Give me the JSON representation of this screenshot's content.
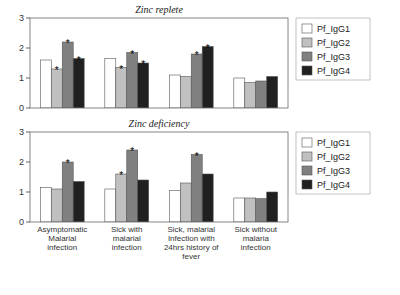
{
  "chart_data": [
    {
      "type": "bar",
      "title": "Zinc replete",
      "categories": [
        null,
        null,
        null,
        null
      ],
      "series": [
        {
          "name": "Pf_IgG1",
          "color": "#ffffff",
          "values": [
            1.6,
            1.65,
            1.1,
            1.0
          ]
        },
        {
          "name": "Pf_IgG2",
          "color": "#c0c0c0",
          "values": [
            1.3,
            1.35,
            1.05,
            0.85
          ],
          "annotations": [
            "*",
            "*",
            null,
            null
          ]
        },
        {
          "name": "Pf_IgG3",
          "color": "#808080",
          "values": [
            2.2,
            1.85,
            1.8,
            0.9
          ],
          "annotations": [
            "*",
            "*",
            "*",
            null
          ]
        },
        {
          "name": "Pf_IgG4",
          "color": "#202020",
          "values": [
            1.65,
            1.5,
            2.05,
            1.05
          ],
          "annotations": [
            "*",
            "*",
            "*",
            null
          ]
        }
      ],
      "ylim": [
        0.0,
        3.0
      ],
      "yticks": [
        0,
        1,
        2,
        3
      ],
      "legend": "right"
    },
    {
      "type": "bar",
      "title": "Zinc deficiency",
      "categories": [
        "Asymptomatic\nMalarial\ninfection",
        "Sick with\nmalarial\ninfection",
        "Sick, malarial\nInfection with\n24hrs history of\nfever",
        "Sick without\nmalaria\ninfection"
      ],
      "series": [
        {
          "name": "Pf_IgG1",
          "color": "#ffffff",
          "values": [
            1.15,
            1.1,
            1.05,
            0.8
          ]
        },
        {
          "name": "Pf_IgG2",
          "color": "#c0c0c0",
          "values": [
            1.1,
            1.6,
            1.3,
            0.8
          ],
          "annotations": [
            null,
            "*",
            null,
            null
          ]
        },
        {
          "name": "Pf_IgG3",
          "color": "#808080",
          "values": [
            2.0,
            2.4,
            2.25,
            0.78
          ],
          "annotations": [
            "*",
            "*",
            "*",
            null
          ]
        },
        {
          "name": "Pf_IgG4",
          "color": "#202020",
          "values": [
            1.35,
            1.4,
            1.6,
            1.0
          ]
        }
      ],
      "ylim": [
        0.0,
        3.0
      ],
      "yticks": [
        0,
        1,
        2,
        3
      ],
      "legend": "right"
    }
  ]
}
